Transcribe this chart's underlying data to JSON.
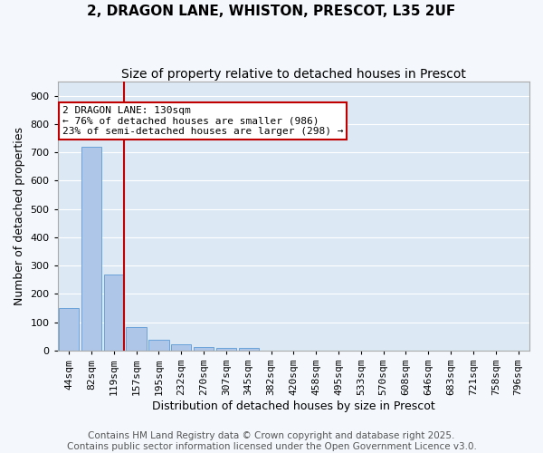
{
  "title": "2, DRAGON LANE, WHISTON, PRESCOT, L35 2UF",
  "subtitle": "Size of property relative to detached houses in Prescot",
  "xlabel": "Distribution of detached houses by size in Prescot",
  "ylabel": "Number of detached properties",
  "footer_line1": "Contains HM Land Registry data © Crown copyright and database right 2025.",
  "footer_line2": "Contains public sector information licensed under the Open Government Licence v3.0.",
  "categories": [
    "44sqm",
    "82sqm",
    "119sqm",
    "157sqm",
    "195sqm",
    "232sqm",
    "270sqm",
    "307sqm",
    "345sqm",
    "382sqm",
    "420sqm",
    "458sqm",
    "495sqm",
    "533sqm",
    "570sqm",
    "608sqm",
    "646sqm",
    "683sqm",
    "721sqm",
    "758sqm",
    "796sqm"
  ],
  "values": [
    150,
    720,
    270,
    83,
    37,
    22,
    14,
    8,
    10,
    0,
    0,
    0,
    0,
    0,
    0,
    0,
    0,
    0,
    0,
    0,
    0
  ],
  "bar_color": "#aec6e8",
  "bar_edge_color": "#5b9bd5",
  "background_color": "#dce9f5",
  "grid_color": "#ffffff",
  "annotation_line1": "2 DRAGON LANE: 130sqm",
  "annotation_line2": "← 76% of detached houses are smaller (986)",
  "annotation_line3": "23% of semi-detached houses are larger (298) →",
  "vline_bin_index": 2,
  "vline_color": "#c00000",
  "box_edge_color": "#c00000",
  "ylim": [
    0,
    950
  ],
  "yticks": [
    0,
    100,
    200,
    300,
    400,
    500,
    600,
    700,
    800,
    900
  ],
  "title_fontsize": 11,
  "subtitle_fontsize": 10,
  "axis_label_fontsize": 9,
  "tick_fontsize": 8,
  "annotation_fontsize": 8,
  "footer_fontsize": 7.5,
  "fig_bg": "#f4f8fc"
}
